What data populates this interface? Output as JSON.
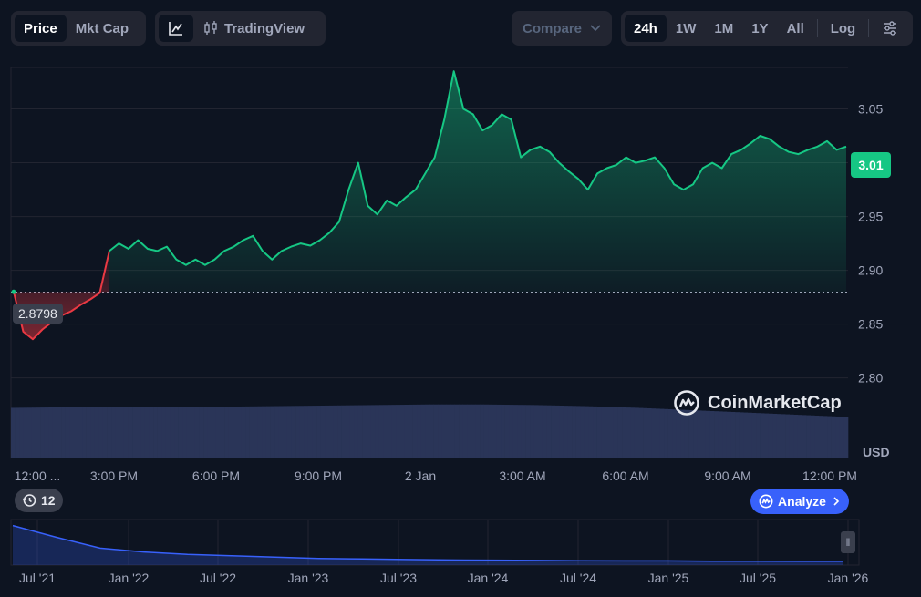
{
  "toolbar": {
    "price_label": "Price",
    "mktcap_label": "Mkt Cap",
    "tradingview_label": "TradingView",
    "compare_label": "Compare",
    "ranges": [
      "24h",
      "1W",
      "1M",
      "1Y",
      "All"
    ],
    "log_label": "Log"
  },
  "current_price": "3.01",
  "open_price": "2.8798",
  "currency_label": "USD",
  "watermark": "CoinMarketCap",
  "history_count": "12",
  "analyze_label": "Analyze",
  "colors": {
    "up": "#16c784",
    "down": "#ea3943",
    "accent": "#3861fb",
    "background": "#0d1421"
  },
  "chart_data": {
    "type": "line",
    "title": "",
    "ylabel": "",
    "yticks": [
      "3.05",
      "3.00",
      "2.95",
      "2.90",
      "2.85",
      "2.80"
    ],
    "ylim": [
      2.78,
      3.09
    ],
    "xticks": [
      "12:00 ...",
      "3:00 PM",
      "6:00 PM",
      "9:00 PM",
      "2 Jan",
      "3:00 AM",
      "6:00 AM",
      "9:00 AM",
      "12:00 PM"
    ],
    "baseline": 2.8798,
    "grid": true,
    "series": [
      {
        "values": [
          2.88,
          2.843,
          2.836,
          2.845,
          2.852,
          2.858,
          2.862,
          2.868,
          2.873,
          2.879,
          2.918,
          2.925,
          2.92,
          2.928,
          2.92,
          2.918,
          2.922,
          2.91,
          2.905,
          2.91,
          2.905,
          2.91,
          2.918,
          2.922,
          2.928,
          2.932,
          2.918,
          2.91,
          2.918,
          2.922,
          2.925,
          2.923,
          2.928,
          2.935,
          2.945,
          2.975,
          3.0,
          2.96,
          2.952,
          2.965,
          2.96,
          2.968,
          2.975,
          2.99,
          3.005,
          3.04,
          3.085,
          3.05,
          3.045,
          3.03,
          3.035,
          3.045,
          3.04,
          3.005,
          3.012,
          3.015,
          3.01,
          3.0,
          2.992,
          2.985,
          2.975,
          2.99,
          2.995,
          2.998,
          3.005,
          3.0,
          3.002,
          3.005,
          2.995,
          2.98,
          2.975,
          2.98,
          2.995,
          3.0,
          2.995,
          3.008,
          3.012,
          3.018,
          3.025,
          3.022,
          3.015,
          3.01,
          3.008,
          3.012,
          3.015,
          3.02,
          3.012,
          3.015
        ]
      }
    ],
    "volume": {
      "relative_levels": [
        0.88,
        0.89,
        0.89,
        0.9,
        0.9,
        0.91,
        0.92,
        0.93,
        0.94,
        0.94,
        0.93,
        0.91,
        0.88,
        0.84,
        0.8,
        0.76,
        0.72
      ]
    },
    "navigator": {
      "xticks": [
        "Jul '21",
        "Jan '22",
        "Jul '22",
        "Jan '23",
        "Jul '23",
        "Jan '24",
        "Jul '24",
        "Jan '25",
        "Jul '25",
        "Jan '26"
      ],
      "values": [
        8.0,
        5.5,
        3.2,
        2.4,
        1.9,
        1.6,
        1.3,
        1.0,
        0.9,
        0.8,
        0.7,
        0.65,
        0.6,
        0.55,
        0.5,
        0.5,
        0.45,
        0.45,
        0.4,
        0.4
      ]
    }
  }
}
